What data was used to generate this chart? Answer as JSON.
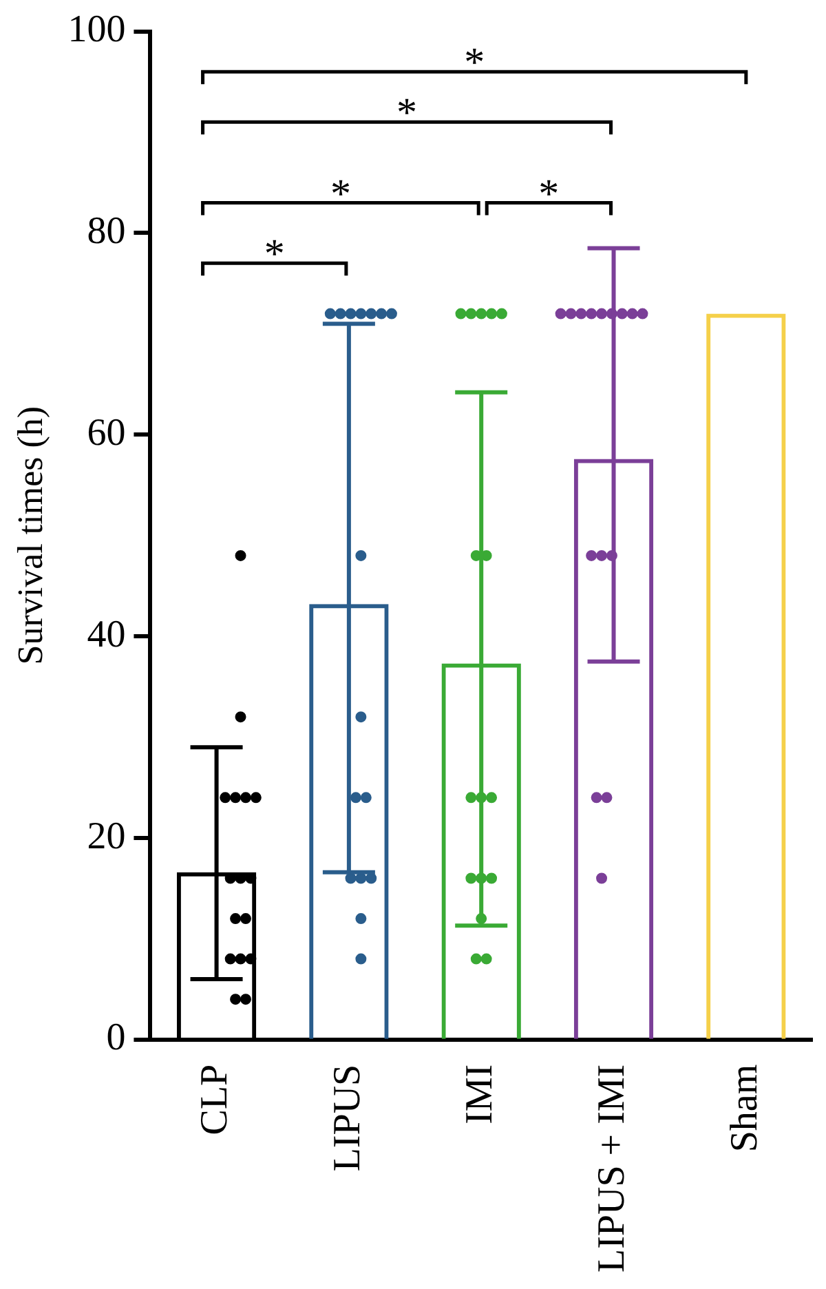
{
  "chart_data": {
    "type": "bar",
    "ylabel": "Survival times (h)",
    "categories": [
      "CLP",
      "LIPUS",
      "IMI",
      "LIPUS + IMI",
      "Sham"
    ],
    "ylim": [
      0,
      100
    ],
    "yticks": [
      0,
      20,
      40,
      60,
      80,
      100
    ],
    "grid": false,
    "legend": false,
    "annotations": [
      "*",
      "*",
      "*",
      "*",
      "*"
    ],
    "series": [
      {
        "type": "bar",
        "colors": [
          "#000000",
          "#2a5d8c",
          "#3aaa35",
          "#7b3f98",
          "#f5d04a"
        ],
        "values": [
          16.6,
          43.2,
          37.3,
          57.6,
          72
        ],
        "errors": [
          [
            6,
            29
          ],
          [
            16.6,
            71
          ],
          [
            11.3,
            64.2
          ],
          [
            37.5,
            78.5
          ],
          null
        ]
      },
      {
        "type": "scatter",
        "color": "#000000",
        "marker": "circle",
        "x": [
          "CLP",
          "CLP",
          "CLP",
          "CLP",
          "CLP",
          "CLP",
          "CLP",
          "CLP",
          "CLP",
          "CLP",
          "CLP",
          "CLP",
          "CLP",
          "CLP",
          "CLP",
          "CLP"
        ],
        "values": [
          48,
          32,
          24,
          24,
          24,
          24,
          16,
          16,
          16,
          12,
          12,
          8,
          8,
          8,
          4,
          4
        ]
      },
      {
        "type": "scatter",
        "color": "#2a5d8c",
        "marker": "circle",
        "x": [
          "LIPUS",
          "LIPUS",
          "LIPUS",
          "LIPUS",
          "LIPUS",
          "LIPUS",
          "LIPUS",
          "LIPUS",
          "LIPUS",
          "LIPUS",
          "LIPUS",
          "LIPUS",
          "LIPUS",
          "LIPUS",
          "LIPUS",
          "LIPUS"
        ],
        "values": [
          72,
          72,
          72,
          72,
          72,
          72,
          72,
          48,
          32,
          24,
          24,
          16,
          16,
          16,
          12,
          8
        ]
      },
      {
        "type": "scatter",
        "color": "#3aaa35",
        "marker": "circle",
        "x": [
          "IMI",
          "IMI",
          "IMI",
          "IMI",
          "IMI",
          "IMI",
          "IMI",
          "IMI",
          "IMI",
          "IMI",
          "IMI",
          "IMI",
          "IMI",
          "IMI",
          "IMI",
          "IMI"
        ],
        "values": [
          72,
          72,
          72,
          72,
          72,
          48,
          48,
          24,
          24,
          24,
          16,
          16,
          16,
          12,
          8,
          8
        ]
      },
      {
        "type": "scatter",
        "color": "#7b3f98",
        "marker": "circle",
        "x": [
          "LIPUS + IMI",
          "LIPUS + IMI",
          "LIPUS + IMI",
          "LIPUS + IMI",
          "LIPUS + IMI",
          "LIPUS + IMI",
          "LIPUS + IMI",
          "LIPUS + IMI",
          "LIPUS + IMI",
          "LIPUS + IMI",
          "LIPUS + IMI",
          "LIPUS + IMI",
          "LIPUS + IMI",
          "LIPUS + IMI",
          "LIPUS + IMI"
        ],
        "values": [
          72,
          72,
          72,
          72,
          72,
          72,
          72,
          72,
          72,
          48,
          48,
          48,
          24,
          24,
          16
        ]
      }
    ]
  }
}
